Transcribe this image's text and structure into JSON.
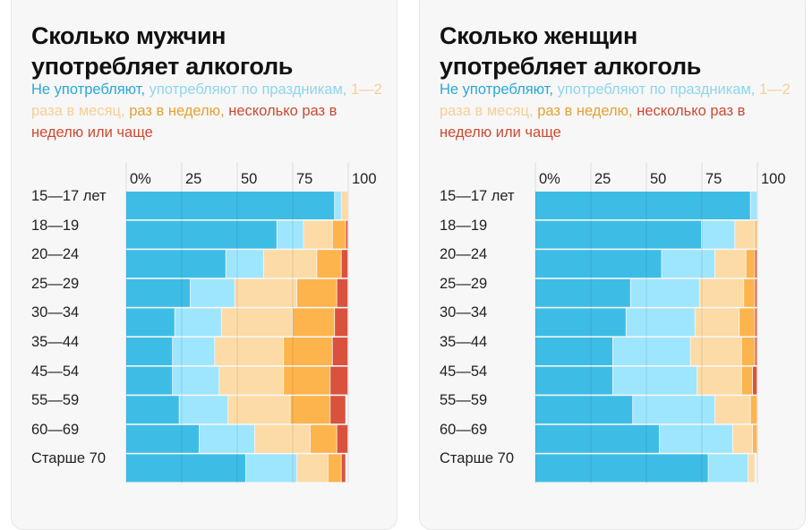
{
  "colors": {
    "none": "#3dbde6",
    "holidays": "#9ee6fd",
    "monthly": "#fddba6",
    "weekly": "#fdb44d",
    "often": "#d9523e"
  },
  "legend_colors": [
    "#2aa8d6",
    "#8dd6ee",
    "#f5cf98",
    "#e3a233",
    "#cc4a32"
  ],
  "chart_data": [
    {
      "type": "bar",
      "orientation": "horizontal-stacked",
      "title_line1": "Сколько мужчин",
      "title_line2": "употребляет алкоголь",
      "legend": [
        "Не употребляют,",
        "употребляют по праздникам,",
        "1—2 раза в месяц,",
        "раз в неделю,",
        "несколько раз в неделю или чаще"
      ],
      "xlim": [
        0,
        100
      ],
      "ticks": [
        "0%",
        "25",
        "50",
        "75",
        "100"
      ],
      "grid": true,
      "categories": [
        "15—17 лет",
        "18—19",
        "20—24",
        "25—29",
        "30—34",
        "35—44",
        "45—54",
        "55—59",
        "60—69",
        "Старше 70"
      ],
      "series": [
        {
          "name": "Не употребляют",
          "values": [
            94,
            68,
            45,
            29,
            22,
            21,
            21,
            24,
            33,
            54
          ]
        },
        {
          "name": "употребляют по праздникам",
          "values": [
            3,
            12,
            17,
            20,
            21,
            19,
            21,
            22,
            25,
            23
          ]
        },
        {
          "name": "1—2 раза в месяц",
          "values": [
            3,
            13,
            24,
            28,
            32,
            31,
            29,
            28,
            25,
            14
          ]
        },
        {
          "name": "раз в неделю",
          "values": [
            0,
            6,
            11,
            18,
            19,
            22,
            21,
            18,
            12,
            6
          ]
        },
        {
          "name": "несколько раз в неделю или чаще",
          "values": [
            0,
            1,
            3,
            5,
            6,
            7,
            8,
            7,
            5,
            2
          ]
        }
      ]
    },
    {
      "type": "bar",
      "orientation": "horizontal-stacked",
      "title_line1": "Сколько женщин",
      "title_line2": "употребляет алкоголь",
      "legend": [
        "Не употребляют,",
        "употребляют по праздникам,",
        "1—2 раза в месяц,",
        "раз в неделю,",
        "несколько раз в неделю или чаще"
      ],
      "xlim": [
        0,
        100
      ],
      "ticks": [
        "0%",
        "25",
        "50",
        "75",
        "100"
      ],
      "grid": true,
      "categories": [
        "15—17 лет",
        "18—19",
        "20—24",
        "25—29",
        "30—34",
        "35—44",
        "45—54",
        "55—59",
        "60—69",
        "Старше 70"
      ],
      "series": [
        {
          "name": "Не употребляют",
          "values": [
            97,
            75,
            57,
            43,
            41,
            35,
            35,
            44,
            56,
            78
          ]
        },
        {
          "name": "употребляют по праздникам",
          "values": [
            3,
            15,
            24,
            31,
            31,
            35,
            38,
            37,
            33,
            18
          ]
        },
        {
          "name": "1—2 раза в месяц",
          "values": [
            0,
            9,
            14,
            20,
            20,
            23,
            20,
            16,
            9,
            3
          ]
        },
        {
          "name": "раз в неделю",
          "values": [
            0,
            1,
            4,
            5,
            7,
            6,
            5,
            3,
            2,
            0
          ]
        },
        {
          "name": "несколько раз в неделю или чаще",
          "values": [
            0,
            0,
            1,
            1,
            1,
            1,
            2,
            0,
            0,
            0
          ]
        }
      ]
    }
  ]
}
